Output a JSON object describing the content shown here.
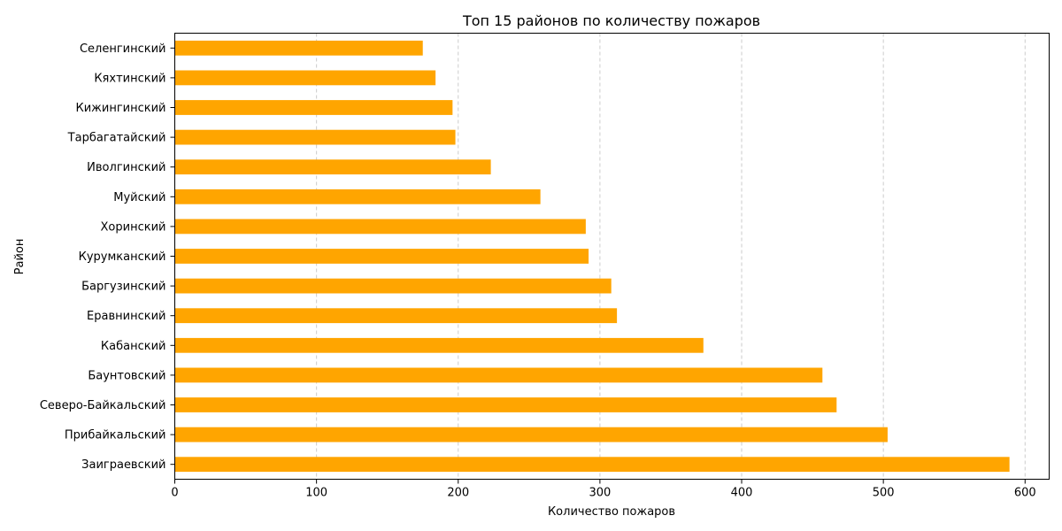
{
  "chart_data": {
    "type": "bar",
    "orientation": "horizontal",
    "title": "Топ 15 районов по количеству пожаров",
    "xlabel": "Количество пожаров",
    "ylabel": "Район",
    "xlim": [
      0,
      617
    ],
    "xticks": [
      0,
      100,
      200,
      300,
      400,
      500,
      600
    ],
    "grid": "x, dashed",
    "bar_color": "#FFA500",
    "categories": [
      "Заиграевский",
      "Прибайкальский",
      "Северо-Байкальский",
      "Баунтовский",
      "Кабанский",
      "Еравнинский",
      "Баргузинский",
      "Курумканский",
      "Хоринский",
      "Муйский",
      "Иволгинский",
      "Тарбагатайский",
      "Кижингинский",
      "Кяхтинский",
      "Селенгинский"
    ],
    "values": [
      589,
      503,
      467,
      457,
      373,
      312,
      308,
      292,
      290,
      258,
      223,
      198,
      196,
      184,
      175
    ]
  }
}
